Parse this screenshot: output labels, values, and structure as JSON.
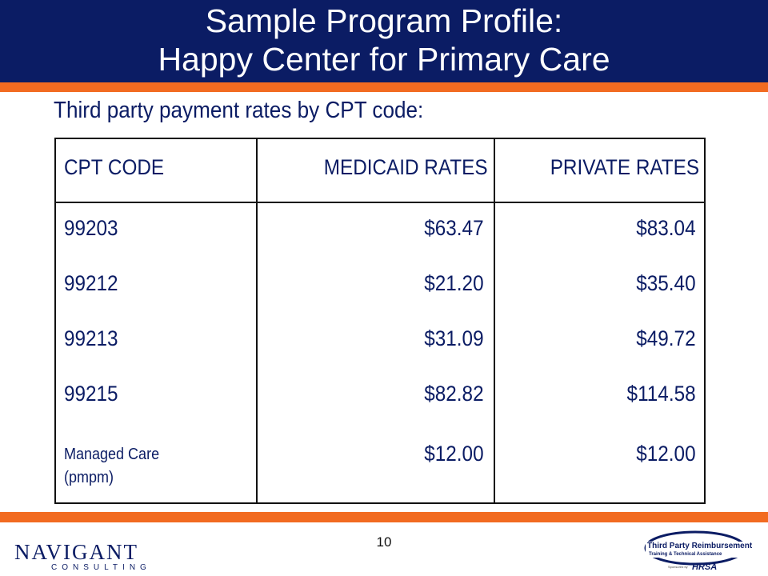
{
  "header": {
    "title_line1": "Sample Program Profile:",
    "title_line2": "Happy Center for Primary Care"
  },
  "subtitle": "Third party payment rates by CPT code:",
  "table": {
    "columns": [
      "CPT CODE",
      "MEDICAID RATES",
      "PRIVATE RATES"
    ],
    "rows": [
      {
        "code": "99203",
        "medicaid": "$63.47",
        "private": "$83.04"
      },
      {
        "code": "99212",
        "medicaid": "$21.20",
        "private": "$35.40"
      },
      {
        "code": "99213",
        "medicaid": "$31.09",
        "private": "$49.72"
      },
      {
        "code": "99215",
        "medicaid": "$82.82",
        "private": "$114.58"
      },
      {
        "code": "Managed Care (pmpm)",
        "medicaid": "$12.00",
        "private": "$12.00"
      }
    ]
  },
  "footer": {
    "page_number": "10",
    "left_logo": {
      "name": "NAVIGANT",
      "sub": "CONSULTING"
    },
    "right_logo": {
      "line1": "Third Party Reimbursement",
      "line2": "Training & Technical Assistance",
      "sponsor": "Sponsored by",
      "hrsa": "HRSA"
    }
  },
  "colors": {
    "navy": "#0b1c64",
    "orange": "#f26b21"
  }
}
